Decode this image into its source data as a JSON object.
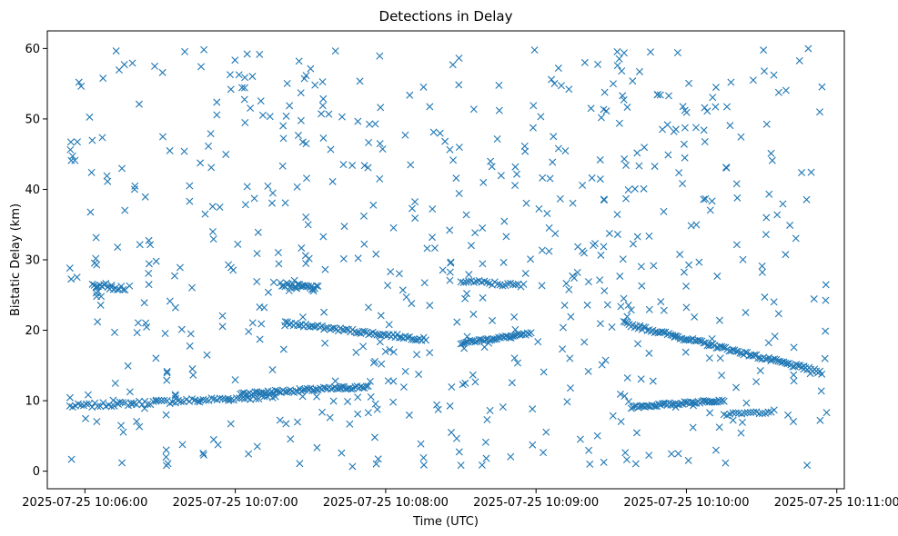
{
  "chart_data": {
    "type": "scatter",
    "title": "Detections in Delay",
    "xlabel": "Time (UTC)",
    "ylabel": "Bistatic Delay (km)",
    "x_unit": "seconds after 2025-07-25 10:06:00",
    "xlim": [
      -15,
      303
    ],
    "ylim": [
      -2.5,
      62.5
    ],
    "xticks": [
      {
        "value": 0,
        "label": "2025-07-25 10:06:00"
      },
      {
        "value": 60,
        "label": "2025-07-25 10:07:00"
      },
      {
        "value": 120,
        "label": "2025-07-25 10:08:00"
      },
      {
        "value": 180,
        "label": "2025-07-25 10:09:00"
      },
      {
        "value": 240,
        "label": "2025-07-25 10:10:00"
      },
      {
        "value": 300,
        "label": "2025-07-25 10:11:00"
      }
    ],
    "yticks": [
      0,
      10,
      20,
      30,
      40,
      50,
      60
    ],
    "grid": false,
    "marker": "x",
    "color": "#1f77b4",
    "x_range": [
      -6,
      296
    ],
    "series": [
      {
        "name": "",
        "tracks": [
          {
            "x0": -6,
            "x1": 76,
            "y0": 9.2,
            "y1": 10.6,
            "n": 75,
            "jitter": 0.3
          },
          {
            "x0": 62,
            "x1": 113,
            "y0": 11.0,
            "y1": 12.0,
            "n": 70,
            "jitter": 0.25
          },
          {
            "x0": 80,
            "x1": 136,
            "y0": 21.0,
            "y1": 18.7,
            "n": 70,
            "jitter": 0.25
          },
          {
            "x0": 150,
            "x1": 178,
            "y0": 18.2,
            "y1": 19.5,
            "n": 40,
            "jitter": 0.2
          },
          {
            "x0": 215,
            "x1": 294,
            "y0": 21.0,
            "y1": 14.0,
            "n": 110,
            "jitter": 0.25
          },
          {
            "x0": 218,
            "x1": 255,
            "y0": 9.1,
            "y1": 10.1,
            "n": 55,
            "jitter": 0.2
          },
          {
            "x0": 78,
            "x1": 93,
            "y0": 26.5,
            "y1": 26.0,
            "n": 25,
            "jitter": 0.3
          },
          {
            "x0": 150,
            "x1": 175,
            "y0": 27.0,
            "y1": 26.3,
            "n": 25,
            "jitter": 0.3
          },
          {
            "x0": 3,
            "x1": 16,
            "y0": 26.5,
            "y1": 26.0,
            "n": 18,
            "jitter": 0.4
          },
          {
            "x0": 255,
            "x1": 275,
            "y0": 8.0,
            "y1": 8.5,
            "n": 18,
            "jitter": 0.2
          }
        ],
        "clutter": {
          "count": 650,
          "seed": 7,
          "y_range": [
            0.5,
            60
          ]
        }
      }
    ]
  }
}
